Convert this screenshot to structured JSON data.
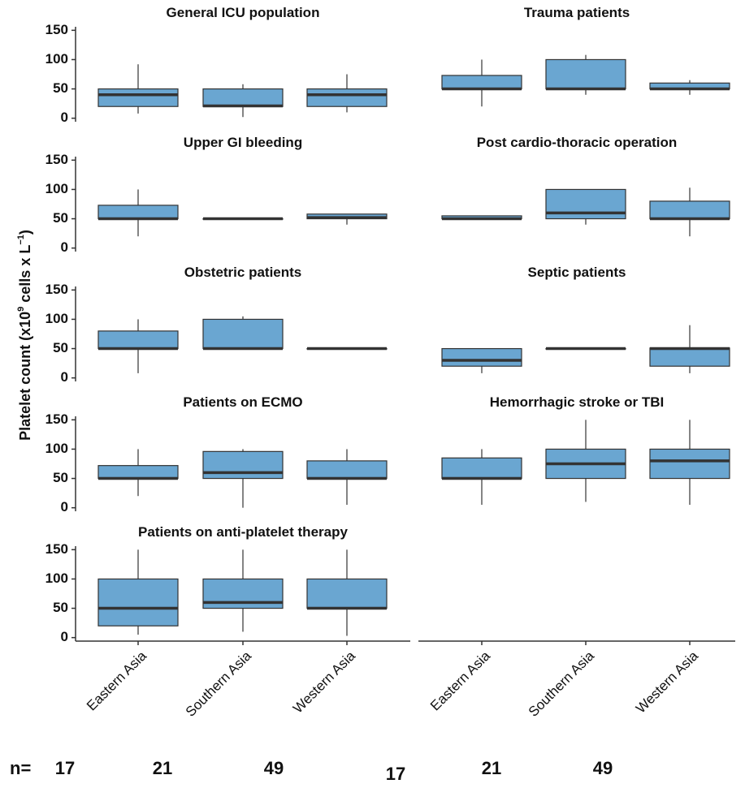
{
  "chart_data": {
    "type": "box",
    "color": "#6aa6d1",
    "edge_color": "#333333",
    "y_label": [
      "Platelet count (x10",
      "9",
      " cells x L",
      "−1",
      ")"
    ],
    "categories": [
      "Eastern Asia",
      "Southern Asia",
      "Western Asia"
    ],
    "ylim": [
      -6,
      156
    ],
    "yticks": [
      0,
      50,
      100,
      150
    ],
    "n_label": "n=",
    "n_counts": [
      17,
      21,
      49,
      17,
      21,
      49
    ],
    "panels": [
      {
        "title": "General ICU population",
        "boxes": [
          {
            "whislo": 8,
            "q1": 20,
            "med": 40,
            "q3": 50,
            "whishi": 92
          },
          {
            "whislo": 2,
            "q1": 20,
            "med": 21,
            "q3": 50,
            "whishi": 58
          },
          {
            "whislo": 10,
            "q1": 20,
            "med": 40,
            "q3": 50,
            "whishi": 75
          }
        ]
      },
      {
        "title": "Trauma patients",
        "boxes": [
          {
            "whislo": 20,
            "q1": 50,
            "med": 50,
            "q3": 73,
            "whishi": 100
          },
          {
            "whislo": 40,
            "q1": 50,
            "med": 50,
            "q3": 100,
            "whishi": 108
          },
          {
            "whislo": 40,
            "q1": 50,
            "med": 50,
            "q3": 60,
            "whishi": 65
          }
        ]
      },
      {
        "title": "Upper GI bleeding",
        "boxes": [
          {
            "whislo": 20,
            "q1": 50,
            "med": 50,
            "q3": 73,
            "whishi": 100
          },
          {
            "whislo": 50,
            "q1": 50,
            "med": 50,
            "q3": 50,
            "whishi": 50
          },
          {
            "whislo": 40,
            "q1": 50,
            "med": 52,
            "q3": 58,
            "whishi": 58
          }
        ]
      },
      {
        "title": "Post cardio-thoracic operation",
        "boxes": [
          {
            "whislo": 50,
            "q1": 50,
            "med": 50,
            "q3": 55,
            "whishi": 55
          },
          {
            "whislo": 40,
            "q1": 50,
            "med": 60,
            "q3": 100,
            "whishi": 100
          },
          {
            "whislo": 20,
            "q1": 50,
            "med": 50,
            "q3": 80,
            "whishi": 103
          }
        ]
      },
      {
        "title": "Obstetric patients",
        "boxes": [
          {
            "whislo": 8,
            "q1": 50,
            "med": 50,
            "q3": 80,
            "whishi": 100
          },
          {
            "whislo": 50,
            "q1": 50,
            "med": 50,
            "q3": 100,
            "whishi": 105
          },
          {
            "whislo": 50,
            "q1": 50,
            "med": 50,
            "q3": 50,
            "whishi": 50
          }
        ]
      },
      {
        "title": "Septic patients",
        "boxes": [
          {
            "whislo": 8,
            "q1": 20,
            "med": 30,
            "q3": 50,
            "whishi": 50
          },
          {
            "whislo": 50,
            "q1": 50,
            "med": 50,
            "q3": 50,
            "whishi": 50
          },
          {
            "whislo": 8,
            "q1": 20,
            "med": 50,
            "q3": 51,
            "whishi": 90
          }
        ]
      },
      {
        "title": "Patients on ECMO",
        "boxes": [
          {
            "whislo": 20,
            "q1": 50,
            "med": 50,
            "q3": 72,
            "whishi": 100
          },
          {
            "whislo": 0,
            "q1": 50,
            "med": 60,
            "q3": 96,
            "whishi": 100
          },
          {
            "whislo": 5,
            "q1": 50,
            "med": 50,
            "q3": 80,
            "whishi": 100
          }
        ]
      },
      {
        "title": "Hemorrhagic stroke or TBI",
        "boxes": [
          {
            "whislo": 5,
            "q1": 50,
            "med": 50,
            "q3": 85,
            "whishi": 100
          },
          {
            "whislo": 10,
            "q1": 50,
            "med": 75,
            "q3": 100,
            "whishi": 150
          },
          {
            "whislo": 5,
            "q1": 50,
            "med": 80,
            "q3": 100,
            "whishi": 150
          }
        ]
      },
      {
        "title": "Patients on anti-platelet therapy",
        "boxes": [
          {
            "whislo": 5,
            "q1": 20,
            "med": 50,
            "q3": 100,
            "whishi": 150
          },
          {
            "whislo": 10,
            "q1": 50,
            "med": 60,
            "q3": 100,
            "whishi": 150
          },
          {
            "whislo": 3,
            "q1": 50,
            "med": 50,
            "q3": 100,
            "whishi": 150
          }
        ]
      }
    ]
  }
}
